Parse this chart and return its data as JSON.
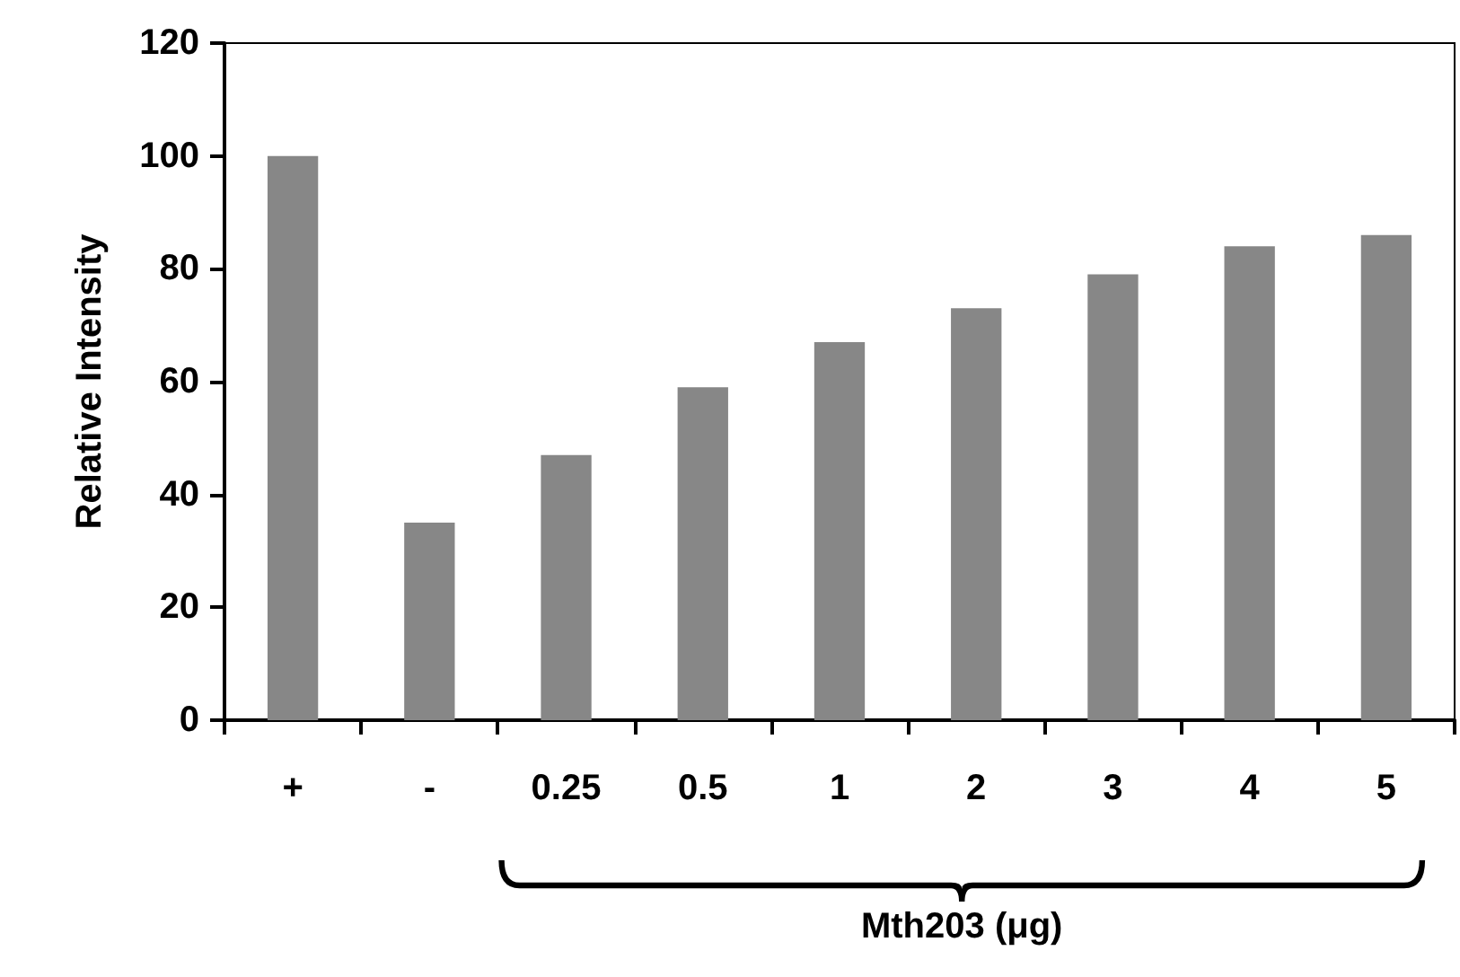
{
  "chart_data": {
    "type": "bar",
    "ylabel": "Relative Intensity",
    "xlabel": "Mth203 (μg)",
    "categories": [
      "+",
      "-",
      "0.25",
      "0.5",
      "1",
      "2",
      "3",
      "4",
      "5"
    ],
    "values": [
      100,
      35,
      47,
      59,
      67,
      73,
      79,
      84,
      86
    ],
    "color": "#878787",
    "ylim": [
      0,
      120
    ],
    "yticks": [
      0,
      20,
      40,
      60,
      80,
      100,
      120
    ],
    "grid": false
  }
}
